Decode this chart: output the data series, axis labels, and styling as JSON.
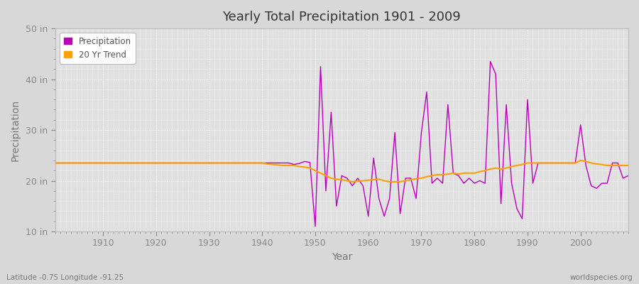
{
  "title": "Yearly Total Precipitation 1901 - 2009",
  "xlabel": "Year",
  "ylabel": "Precipitation",
  "subtitle": "Latitude -0.75 Longitude -91.25",
  "watermark": "worldspecies.org",
  "ylim": [
    10,
    50
  ],
  "yticks": [
    10,
    20,
    30,
    40,
    50
  ],
  "ytick_labels": [
    "10 in",
    "20 in",
    "30 in",
    "40 in",
    "50 in"
  ],
  "xlim": [
    1901,
    2009
  ],
  "xticks": [
    1910,
    1920,
    1930,
    1940,
    1950,
    1960,
    1970,
    1980,
    1990,
    2000
  ],
  "fig_bg_color": "#d8d8d8",
  "plot_bg_color": "#e0e0e0",
  "grid_color": "#ffffff",
  "precip_color": "#bb00bb",
  "trend_color": "#ffa000",
  "precip_linewidth": 1.0,
  "trend_linewidth": 1.5,
  "legend_labels": [
    "Precipitation",
    "20 Yr Trend"
  ],
  "title_color": "#333333",
  "axis_label_color": "#777777",
  "tick_color": "#888888",
  "years": [
    1901,
    1902,
    1903,
    1904,
    1905,
    1906,
    1907,
    1908,
    1909,
    1910,
    1911,
    1912,
    1913,
    1914,
    1915,
    1916,
    1917,
    1918,
    1919,
    1920,
    1921,
    1922,
    1923,
    1924,
    1925,
    1926,
    1927,
    1928,
    1929,
    1930,
    1931,
    1932,
    1933,
    1934,
    1935,
    1936,
    1937,
    1938,
    1939,
    1940,
    1941,
    1942,
    1943,
    1944,
    1945,
    1946,
    1947,
    1948,
    1949,
    1950,
    1951,
    1952,
    1953,
    1954,
    1955,
    1956,
    1957,
    1958,
    1959,
    1960,
    1961,
    1962,
    1963,
    1964,
    1965,
    1966,
    1967,
    1968,
    1969,
    1970,
    1971,
    1972,
    1973,
    1974,
    1975,
    1976,
    1977,
    1978,
    1979,
    1980,
    1981,
    1982,
    1983,
    1984,
    1985,
    1986,
    1987,
    1988,
    1989,
    1990,
    1991,
    1992,
    1993,
    1994,
    1995,
    1996,
    1997,
    1998,
    1999,
    2000,
    2001,
    2002,
    2003,
    2004,
    2005,
    2006,
    2007,
    2008,
    2009
  ],
  "precip": [
    23.5,
    23.5,
    23.5,
    23.5,
    23.5,
    23.5,
    23.5,
    23.5,
    23.5,
    23.5,
    23.5,
    23.5,
    23.5,
    23.5,
    23.5,
    23.5,
    23.5,
    23.5,
    23.5,
    23.5,
    23.5,
    23.5,
    23.5,
    23.5,
    23.5,
    23.5,
    23.5,
    23.5,
    23.5,
    23.5,
    23.5,
    23.5,
    23.5,
    23.5,
    23.5,
    23.5,
    23.5,
    23.5,
    23.5,
    23.5,
    23.5,
    23.5,
    23.5,
    23.5,
    23.5,
    23.2,
    23.4,
    23.8,
    23.6,
    11.0,
    42.5,
    18.0,
    33.5,
    15.0,
    21.0,
    20.5,
    19.0,
    20.5,
    19.0,
    13.0,
    24.5,
    16.5,
    13.0,
    16.5,
    29.5,
    13.5,
    20.5,
    20.5,
    16.5,
    29.5,
    37.5,
    19.5,
    20.5,
    19.5,
    35.0,
    21.5,
    21.0,
    19.5,
    20.5,
    19.5,
    20.0,
    19.5,
    43.5,
    41.0,
    15.5,
    35.0,
    19.5,
    14.5,
    12.5,
    36.0,
    19.5,
    23.5,
    23.5,
    23.5,
    23.5,
    23.5,
    23.5,
    23.5,
    23.5,
    31.0,
    23.0,
    19.0,
    18.5,
    19.5,
    19.5,
    23.5,
    23.5,
    20.5,
    21.0
  ],
  "trend": [
    23.5,
    23.5,
    23.5,
    23.5,
    23.5,
    23.5,
    23.5,
    23.5,
    23.5,
    23.5,
    23.5,
    23.5,
    23.5,
    23.5,
    23.5,
    23.5,
    23.5,
    23.5,
    23.5,
    23.5,
    23.5,
    23.5,
    23.5,
    23.5,
    23.5,
    23.5,
    23.5,
    23.5,
    23.5,
    23.5,
    23.5,
    23.5,
    23.5,
    23.5,
    23.5,
    23.5,
    23.5,
    23.5,
    23.5,
    23.5,
    23.3,
    23.2,
    23.1,
    23.0,
    23.0,
    23.0,
    22.8,
    22.7,
    22.5,
    22.0,
    21.5,
    21.0,
    20.5,
    20.3,
    20.2,
    20.0,
    19.8,
    19.9,
    20.0,
    20.1,
    20.2,
    20.3,
    20.0,
    19.8,
    19.8,
    19.8,
    20.0,
    20.2,
    20.4,
    20.5,
    20.8,
    21.0,
    21.2,
    21.2,
    21.3,
    21.5,
    21.3,
    21.5,
    21.5,
    21.5,
    21.8,
    22.0,
    22.3,
    22.5,
    22.3,
    22.5,
    22.8,
    23.0,
    23.2,
    23.5,
    23.5,
    23.5,
    23.5,
    23.5,
    23.5,
    23.5,
    23.5,
    23.5,
    23.5,
    24.0,
    23.8,
    23.5,
    23.3,
    23.2,
    23.0,
    23.0,
    23.0,
    23.0,
    23.0
  ]
}
